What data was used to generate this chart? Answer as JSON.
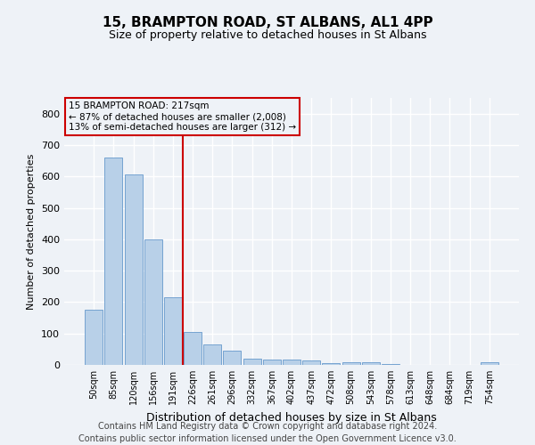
{
  "title": "15, BRAMPTON ROAD, ST ALBANS, AL1 4PP",
  "subtitle": "Size of property relative to detached houses in St Albans",
  "xlabel": "Distribution of detached houses by size in St Albans",
  "ylabel": "Number of detached properties",
  "bar_labels": [
    "50sqm",
    "85sqm",
    "120sqm",
    "156sqm",
    "191sqm",
    "226sqm",
    "261sqm",
    "296sqm",
    "332sqm",
    "367sqm",
    "402sqm",
    "437sqm",
    "472sqm",
    "508sqm",
    "543sqm",
    "578sqm",
    "613sqm",
    "648sqm",
    "684sqm",
    "719sqm",
    "754sqm"
  ],
  "bar_values": [
    175,
    660,
    605,
    400,
    215,
    105,
    65,
    45,
    20,
    18,
    18,
    13,
    5,
    8,
    8,
    2,
    0,
    0,
    0,
    0,
    8
  ],
  "bar_color": "#b8d0e8",
  "bar_edgecolor": "#6699cc",
  "vline_color": "#cc0000",
  "ylim": [
    0,
    850
  ],
  "yticks": [
    0,
    100,
    200,
    300,
    400,
    500,
    600,
    700,
    800
  ],
  "annotation_line1": "15 BRAMPTON ROAD: 217sqm",
  "annotation_line2": "← 87% of detached houses are smaller (2,008)",
  "annotation_line3": "13% of semi-detached houses are larger (312) →",
  "annotation_color": "#cc0000",
  "footer_line1": "Contains HM Land Registry data © Crown copyright and database right 2024.",
  "footer_line2": "Contains public sector information licensed under the Open Government Licence v3.0.",
  "bg_color": "#eef2f7",
  "grid_color": "#ffffff",
  "title_fontsize": 11,
  "subtitle_fontsize": 9,
  "xlabel_fontsize": 9,
  "ylabel_fontsize": 8,
  "footer_fontsize": 7
}
